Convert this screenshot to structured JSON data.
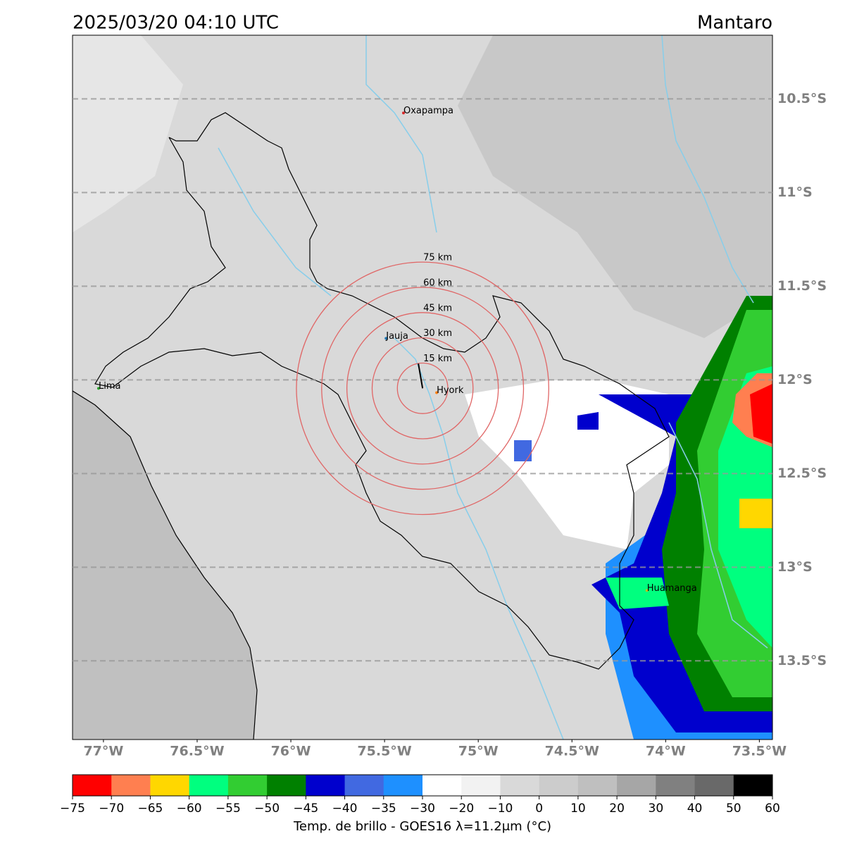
{
  "header": {
    "title": "2025/03/20 04:10 UTC",
    "region": "Mantaro"
  },
  "map": {
    "lonlim": [
      -77.165,
      -73.43
    ],
    "latlim": [
      -13.92,
      -10.16
    ],
    "grid": true,
    "lat_ticks": [
      {
        "value": -10.5,
        "label": "10.5°S"
      },
      {
        "value": -11,
        "label": "11°S"
      },
      {
        "value": -11.5,
        "label": "11.5°S"
      },
      {
        "value": -12,
        "label": "12°S"
      },
      {
        "value": -12.5,
        "label": "12.5°S"
      },
      {
        "value": -13,
        "label": "13°S"
      },
      {
        "value": -13.5,
        "label": "13.5°S"
      }
    ],
    "lon_ticks": [
      {
        "value": -77,
        "label": "77°W"
      },
      {
        "value": -76.5,
        "label": "76.5°W"
      },
      {
        "value": -76,
        "label": "76°W"
      },
      {
        "value": -75.5,
        "label": "75.5°W"
      },
      {
        "value": -75,
        "label": "75°W"
      },
      {
        "value": -74.5,
        "label": "74.5°W"
      },
      {
        "value": -74,
        "label": "74°W"
      },
      {
        "value": -73.5,
        "label": "73.5°W"
      }
    ],
    "center": {
      "lon": -75.297,
      "lat": -12.045
    },
    "ring_color": "#e06666",
    "rings": [
      {
        "value": 15,
        "label": "15 km"
      },
      {
        "value": 30,
        "label": "30 km"
      },
      {
        "value": 45,
        "label": "45 km"
      },
      {
        "value": 60,
        "label": "60 km"
      },
      {
        "value": 75,
        "label": "75 km"
      }
    ],
    "places": [
      {
        "name": "Oxapampa",
        "lon": -75.399,
        "lat": -10.575,
        "color": "#d62728"
      },
      {
        "name": "Jauja",
        "lon": -75.492,
        "lat": -11.778,
        "color": "#1f77b4"
      },
      {
        "name": "Hyork",
        "lon": -75.222,
        "lat": -12.068,
        "color": "#ff7f0e"
      },
      {
        "name": "Lima",
        "lon": -77.026,
        "lat": -12.045,
        "color": "#2ca02c"
      },
      {
        "name": "Huamanga",
        "lon": -74.1,
        "lat": -13.124,
        "color": "#bcbd22"
      }
    ]
  },
  "colorbar": {
    "label": "Temp. de brillo - GOES16 λ=11.2μm (°C)",
    "ticks": [
      {
        "value": -75,
        "label": "−75"
      },
      {
        "value": -70,
        "label": "−70"
      },
      {
        "value": -65,
        "label": "−65"
      },
      {
        "value": -60,
        "label": "−60"
      },
      {
        "value": -55,
        "label": "−55"
      },
      {
        "value": -50,
        "label": "−50"
      },
      {
        "value": -45,
        "label": "−45"
      },
      {
        "value": -40,
        "label": "−40"
      },
      {
        "value": -35,
        "label": "−35"
      },
      {
        "value": -30,
        "label": "−30"
      },
      {
        "value": -20,
        "label": "−20"
      },
      {
        "value": -10,
        "label": "−10"
      },
      0,
      10,
      20,
      30,
      40,
      50,
      60
    ],
    "colors": [
      "#ff0000",
      "#ff7f50",
      "#ffd700",
      "#00ff7f",
      "#32cd32",
      "#008000",
      "#0000cd",
      "#4169e1",
      "#1e90ff",
      "#ffffff",
      "#f2f2f2",
      "#d9d9d9",
      "#cccccc",
      "#bfbfbf",
      "#a6a6a6",
      "#808080",
      "#696969",
      "#000000"
    ]
  }
}
